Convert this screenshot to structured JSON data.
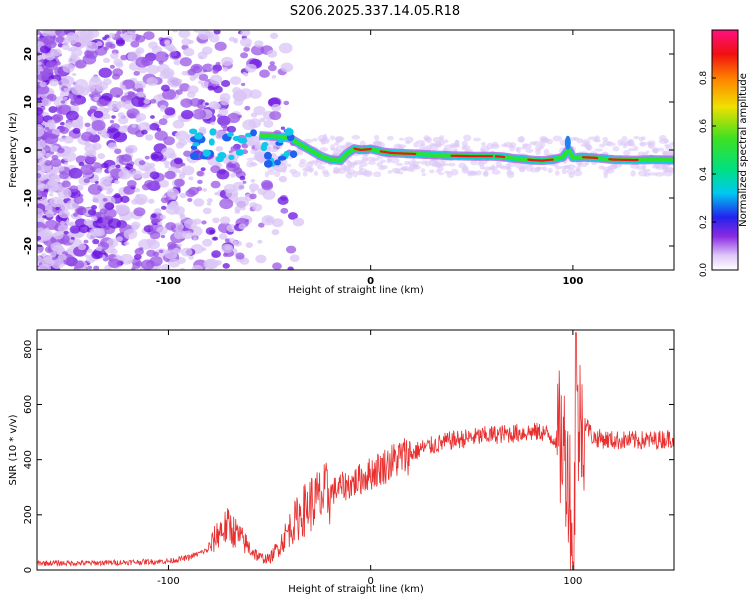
{
  "chart_data": [
    {
      "type": "heatmap",
      "title": "S206.2025.337.14.05.R18",
      "xlabel": "Height of straight line (km)",
      "ylabel": "Frequency (Hz)",
      "xlim": [
        -165,
        150
      ],
      "ylim": [
        -25,
        25
      ],
      "x_ticks": [
        -100,
        0,
        100
      ],
      "y_ticks": [
        -20,
        -10,
        0,
        10,
        20
      ],
      "colorbar": {
        "label": "Normalized spectral amplitude",
        "range": [
          0.0,
          1.0
        ],
        "ticks": [
          "0.0",
          "0.2",
          "0.4",
          "0.6",
          "0.8"
        ],
        "tick_values": [
          0.0,
          0.2,
          0.4,
          0.6,
          0.8
        ]
      },
      "ridge": {
        "x": [
          -55,
          -45,
          -40,
          -35,
          -30,
          -25,
          -20,
          -15,
          -12,
          -8,
          -5,
          0,
          5,
          10,
          20,
          30,
          40,
          50,
          60,
          65,
          70,
          75,
          80,
          85,
          90,
          95,
          98,
          100,
          105,
          110,
          120,
          130,
          140,
          150
        ],
        "freq": [
          3.0,
          2.8,
          2.5,
          1.2,
          0.0,
          -1.2,
          -2.0,
          -2.2,
          -0.8,
          0.3,
          0.0,
          0.2,
          -0.3,
          -0.6,
          -0.8,
          -1.0,
          -1.2,
          -1.3,
          -1.3,
          -1.4,
          -1.7,
          -1.9,
          -2.1,
          -2.2,
          -2.0,
          -1.5,
          0.0,
          -1.6,
          -1.5,
          -1.6,
          -2.0,
          -2.1,
          -2.0,
          -2.1
        ]
      }
    },
    {
      "type": "line",
      "xlabel": "Height of straight line (km)",
      "ylabel": "SNR (10 * v/v)",
      "xlim": [
        -165,
        150
      ],
      "ylim": [
        0,
        870
      ],
      "x_ticks": [
        -100,
        0,
        100
      ],
      "y_ticks": [
        0,
        200,
        400,
        600,
        800
      ],
      "series": [
        {
          "name": "SNR",
          "color": "#e83030",
          "x": [
            -165,
            -140,
            -120,
            -100,
            -90,
            -80,
            -75,
            -70,
            -65,
            -60,
            -55,
            -50,
            -45,
            -40,
            -35,
            -30,
            -25,
            -20,
            -15,
            -10,
            -5,
            0,
            5,
            10,
            15,
            20,
            25,
            30,
            40,
            50,
            60,
            70,
            80,
            85,
            90,
            95,
            98,
            100,
            102,
            105,
            110,
            120,
            130,
            140,
            150
          ],
          "values": [
            25,
            25,
            28,
            32,
            45,
            75,
            140,
            160,
            120,
            80,
            45,
            40,
            90,
            150,
            200,
            240,
            260,
            280,
            300,
            310,
            330,
            350,
            370,
            390,
            410,
            420,
            440,
            450,
            470,
            480,
            490,
            495,
            500,
            500,
            480,
            460,
            350,
            100,
            520,
            550,
            480,
            470,
            470,
            470,
            480
          ]
        }
      ]
    }
  ]
}
